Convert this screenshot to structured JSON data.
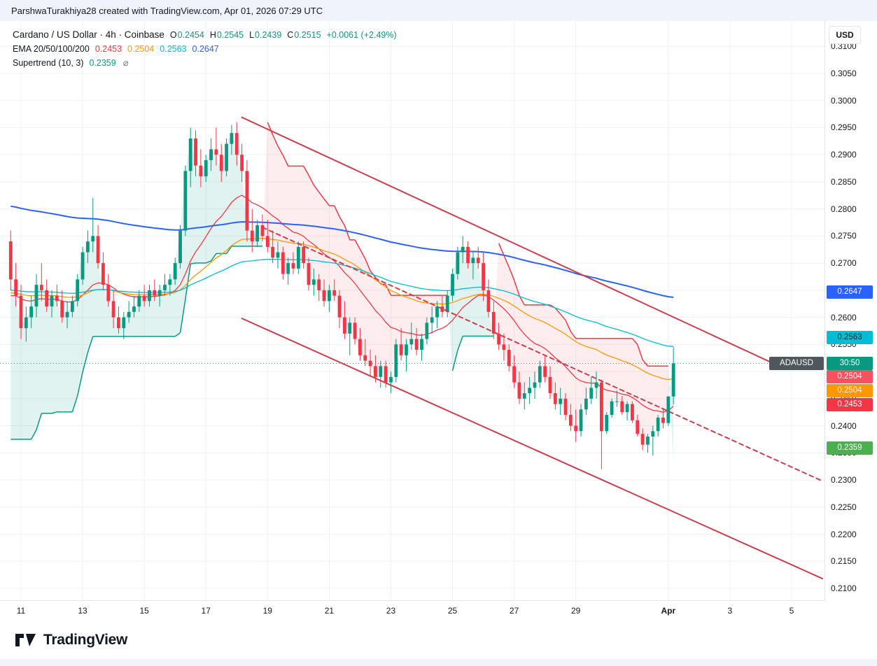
{
  "attribution": "ParshwaTurakhiya28 created with TradingView.com, Apr 01, 2026 07:29 UTC",
  "currency_button": "USD",
  "legend": {
    "symbol_title": "Cardano / US Dollar · 4h · Coinbase",
    "ohlc": {
      "o_label": "O",
      "o": "0.2454",
      "h_label": "H",
      "h": "0.2545",
      "l_label": "L",
      "l": "0.2439",
      "c_label": "C",
      "c": "0.2515",
      "change": "+0.0061 (+2.49%)",
      "color": "#089981"
    },
    "ema": {
      "title": "EMA 20/50/100/200",
      "values": [
        {
          "text": "0.2453",
          "color": "#f23645"
        },
        {
          "text": "0.2504",
          "color": "#ff9800"
        },
        {
          "text": "0.2563",
          "color": "#00bcd4"
        },
        {
          "text": "0.2647",
          "color": "#2962ff"
        }
      ]
    },
    "supertrend": {
      "title": "Supertrend (10, 3)",
      "value": "0.2359",
      "value_color": "#089981",
      "icon": "⌀"
    }
  },
  "symbol_badge": {
    "label": "ADAUSD",
    "bg": "#4d575c",
    "price": 0.2515
  },
  "price_axis": {
    "ticks": [
      "0.3100",
      "0.3050",
      "0.3000",
      "0.2950",
      "0.2900",
      "0.2850",
      "0.2800",
      "0.2750",
      "0.2700",
      "0.2650",
      "0.2600",
      "0.2550",
      "0.2500",
      "0.2450",
      "0.2400",
      "0.2350",
      "0.2300",
      "0.2250",
      "0.2200",
      "0.2150",
      "0.2100"
    ],
    "badges": [
      {
        "label": "0.2647",
        "bg": "#2962ff",
        "fg": "#ffffff",
        "price": 0.2647,
        "name": "ema200-price-badge"
      },
      {
        "label": "0.2563",
        "bg": "#00bcd4",
        "fg": "#102026",
        "price": 0.2563,
        "name": "ema100-price-badge"
      },
      {
        "label": "30:50",
        "bg": "#089981",
        "fg": "#ffffff",
        "price": 0.2515,
        "name": "countdown-badge"
      },
      {
        "label": "0.2504",
        "bg": "#f7525f",
        "fg": "#ffffff",
        "price": 0.249,
        "name": "supertrend-band-price-badge"
      },
      {
        "label": "0.2504",
        "bg": "#ff9800",
        "fg": "#ffffff",
        "price": 0.2464,
        "name": "ema50-price-badge"
      },
      {
        "label": "0.2453",
        "bg": "#f23645",
        "fg": "#ffffff",
        "price": 0.2439,
        "name": "ema20-price-badge"
      },
      {
        "label": "0.2359",
        "bg": "#4caf50",
        "fg": "#ffffff",
        "price": 0.2359,
        "name": "supertrend-price-badge"
      }
    ]
  },
  "time_axis": {
    "ticks": [
      {
        "i": 2,
        "label": "11"
      },
      {
        "i": 14,
        "label": "13"
      },
      {
        "i": 26,
        "label": "15"
      },
      {
        "i": 38,
        "label": "17"
      },
      {
        "i": 50,
        "label": "19"
      },
      {
        "i": 62,
        "label": "21"
      },
      {
        "i": 74,
        "label": "23"
      },
      {
        "i": 86,
        "label": "25"
      },
      {
        "i": 98,
        "label": "27"
      },
      {
        "i": 110,
        "label": "29"
      },
      {
        "i": 128,
        "label": "Apr",
        "bold": true
      },
      {
        "i": 140,
        "label": "3"
      },
      {
        "i": 152,
        "label": "5"
      }
    ]
  },
  "footer": {
    "brand": "TradingView"
  },
  "chart_data": {
    "type": "candlestick",
    "title": "Cardano / US Dollar",
    "symbol": "ADAUSD",
    "interval": "4h",
    "exchange": "Coinbase",
    "price_range": {
      "min": 0.21,
      "max": 0.31
    },
    "last_price": 0.2515,
    "last_price_line_color": "#089981",
    "up_color": "#089981",
    "down_color": "#f23645",
    "grid_color": "#eef0f3",
    "trendline_color": "#cc3e4c",
    "candles": [
      [
        0.274,
        0.276,
        0.265,
        0.267
      ],
      [
        0.267,
        0.27,
        0.262,
        0.264
      ],
      [
        0.264,
        0.266,
        0.256,
        0.258
      ],
      [
        0.258,
        0.262,
        0.2555,
        0.26
      ],
      [
        0.26,
        0.264,
        0.258,
        0.262
      ],
      [
        0.262,
        0.268,
        0.26,
        0.266
      ],
      [
        0.266,
        0.27,
        0.263,
        0.265
      ],
      [
        0.265,
        0.267,
        0.261,
        0.262
      ],
      [
        0.262,
        0.265,
        0.26,
        0.264
      ],
      [
        0.264,
        0.266,
        0.262,
        0.263
      ],
      [
        0.263,
        0.265,
        0.259,
        0.26
      ],
      [
        0.26,
        0.263,
        0.258,
        0.261
      ],
      [
        0.261,
        0.264,
        0.26,
        0.263
      ],
      [
        0.263,
        0.268,
        0.262,
        0.267
      ],
      [
        0.267,
        0.273,
        0.266,
        0.272
      ],
      [
        0.272,
        0.276,
        0.27,
        0.274
      ],
      [
        0.274,
        0.282,
        0.272,
        0.275
      ],
      [
        0.275,
        0.277,
        0.269,
        0.27
      ],
      [
        0.27,
        0.272,
        0.265,
        0.266
      ],
      [
        0.266,
        0.268,
        0.262,
        0.263
      ],
      [
        0.263,
        0.265,
        0.258,
        0.26
      ],
      [
        0.26,
        0.262,
        0.257,
        0.258
      ],
      [
        0.258,
        0.261,
        0.256,
        0.26
      ],
      [
        0.26,
        0.263,
        0.259,
        0.261
      ],
      [
        0.261,
        0.264,
        0.26,
        0.262
      ],
      [
        0.262,
        0.265,
        0.261,
        0.264
      ],
      [
        0.264,
        0.266,
        0.262,
        0.263
      ],
      [
        0.263,
        0.266,
        0.262,
        0.265
      ],
      [
        0.265,
        0.267,
        0.263,
        0.264
      ],
      [
        0.264,
        0.266,
        0.262,
        0.265
      ],
      [
        0.265,
        0.268,
        0.264,
        0.266
      ],
      [
        0.266,
        0.268,
        0.264,
        0.267
      ],
      [
        0.267,
        0.271,
        0.266,
        0.27
      ],
      [
        0.27,
        0.277,
        0.269,
        0.276
      ],
      [
        0.276,
        0.288,
        0.275,
        0.287
      ],
      [
        0.287,
        0.295,
        0.284,
        0.293
      ],
      [
        0.293,
        0.2945,
        0.286,
        0.288
      ],
      [
        0.288,
        0.291,
        0.284,
        0.286
      ],
      [
        0.286,
        0.29,
        0.285,
        0.289
      ],
      [
        0.289,
        0.293,
        0.287,
        0.291
      ],
      [
        0.291,
        0.295,
        0.288,
        0.29
      ],
      [
        0.29,
        0.292,
        0.285,
        0.287
      ],
      [
        0.287,
        0.293,
        0.286,
        0.292
      ],
      [
        0.292,
        0.2955,
        0.29,
        0.294
      ],
      [
        0.294,
        0.296,
        0.288,
        0.29
      ],
      [
        0.29,
        0.292,
        0.285,
        0.287
      ],
      [
        0.287,
        0.289,
        0.274,
        0.276
      ],
      [
        0.276,
        0.28,
        0.272,
        0.274
      ],
      [
        0.274,
        0.278,
        0.273,
        0.277
      ],
      [
        0.277,
        0.279,
        0.274,
        0.275
      ],
      [
        0.275,
        0.278,
        0.272,
        0.273
      ],
      [
        0.273,
        0.276,
        0.27,
        0.271
      ],
      [
        0.271,
        0.274,
        0.269,
        0.272
      ],
      [
        0.272,
        0.273,
        0.267,
        0.268
      ],
      [
        0.268,
        0.271,
        0.266,
        0.27
      ],
      [
        0.27,
        0.272,
        0.268,
        0.269
      ],
      [
        0.269,
        0.274,
        0.268,
        0.273
      ],
      [
        0.273,
        0.274,
        0.269,
        0.27
      ],
      [
        0.27,
        0.271,
        0.265,
        0.266
      ],
      [
        0.266,
        0.269,
        0.264,
        0.267
      ],
      [
        0.267,
        0.268,
        0.263,
        0.265
      ],
      [
        0.265,
        0.267,
        0.262,
        0.263
      ],
      [
        0.263,
        0.266,
        0.261,
        0.265
      ],
      [
        0.265,
        0.267,
        0.263,
        0.264
      ],
      [
        0.264,
        0.265,
        0.258,
        0.26
      ],
      [
        0.26,
        0.263,
        0.256,
        0.257
      ],
      [
        0.257,
        0.26,
        0.253,
        0.259
      ],
      [
        0.259,
        0.26,
        0.255,
        0.256
      ],
      [
        0.256,
        0.258,
        0.252,
        0.253
      ],
      [
        0.253,
        0.256,
        0.251,
        0.252
      ],
      [
        0.252,
        0.254,
        0.249,
        0.251
      ],
      [
        0.251,
        0.253,
        0.248,
        0.249
      ],
      [
        0.249,
        0.252,
        0.247,
        0.251
      ],
      [
        0.251,
        0.252,
        0.247,
        0.248
      ],
      [
        0.248,
        0.25,
        0.246,
        0.249
      ],
      [
        0.249,
        0.256,
        0.248,
        0.255
      ],
      [
        0.255,
        0.258,
        0.252,
        0.253
      ],
      [
        0.253,
        0.256,
        0.25,
        0.255
      ],
      [
        0.255,
        0.259,
        0.254,
        0.256
      ],
      [
        0.256,
        0.258,
        0.253,
        0.254
      ],
      [
        0.254,
        0.257,
        0.252,
        0.256
      ],
      [
        0.256,
        0.26,
        0.255,
        0.259
      ],
      [
        0.259,
        0.262,
        0.257,
        0.26
      ],
      [
        0.26,
        0.263,
        0.258,
        0.262
      ],
      [
        0.262,
        0.264,
        0.26,
        0.261
      ],
      [
        0.261,
        0.265,
        0.26,
        0.264
      ],
      [
        0.264,
        0.269,
        0.263,
        0.268
      ],
      [
        0.268,
        0.273,
        0.267,
        0.272
      ],
      [
        0.272,
        0.275,
        0.27,
        0.273
      ],
      [
        0.273,
        0.274,
        0.269,
        0.27
      ],
      [
        0.27,
        0.272,
        0.267,
        0.271
      ],
      [
        0.271,
        0.273,
        0.269,
        0.27
      ],
      [
        0.27,
        0.272,
        0.263,
        0.265
      ],
      [
        0.265,
        0.267,
        0.26,
        0.261
      ],
      [
        0.261,
        0.263,
        0.256,
        0.257
      ],
      [
        0.257,
        0.259,
        0.254,
        0.255
      ],
      [
        0.255,
        0.257,
        0.252,
        0.254
      ],
      [
        0.254,
        0.255,
        0.25,
        0.251
      ],
      [
        0.251,
        0.253,
        0.247,
        0.248
      ],
      [
        0.248,
        0.25,
        0.244,
        0.245
      ],
      [
        0.245,
        0.248,
        0.243,
        0.246
      ],
      [
        0.246,
        0.249,
        0.244,
        0.247
      ],
      [
        0.247,
        0.25,
        0.245,
        0.248
      ],
      [
        0.248,
        0.252,
        0.247,
        0.251
      ],
      [
        0.251,
        0.253,
        0.248,
        0.249
      ],
      [
        0.249,
        0.251,
        0.245,
        0.246
      ],
      [
        0.246,
        0.248,
        0.243,
        0.244
      ],
      [
        0.244,
        0.247,
        0.242,
        0.245
      ],
      [
        0.245,
        0.246,
        0.241,
        0.242
      ],
      [
        0.242,
        0.244,
        0.239,
        0.24
      ],
      [
        0.24,
        0.243,
        0.237,
        0.239
      ],
      [
        0.239,
        0.244,
        0.238,
        0.243
      ],
      [
        0.243,
        0.247,
        0.242,
        0.245
      ],
      [
        0.245,
        0.249,
        0.244,
        0.247
      ],
      [
        0.247,
        0.25,
        0.245,
        0.248
      ],
      [
        0.248,
        0.2485,
        0.232,
        0.239
      ],
      [
        0.239,
        0.2425,
        0.2385,
        0.242
      ],
      [
        0.242,
        0.245,
        0.2415,
        0.2445
      ],
      [
        0.2445,
        0.2465,
        0.2435,
        0.2445
      ],
      [
        0.2445,
        0.2455,
        0.242,
        0.2425
      ],
      [
        0.2425,
        0.2445,
        0.241,
        0.244
      ],
      [
        0.244,
        0.2445,
        0.2405,
        0.241
      ],
      [
        0.241,
        0.242,
        0.238,
        0.2385
      ],
      [
        0.2385,
        0.2395,
        0.2355,
        0.2365
      ],
      [
        0.2365,
        0.2385,
        0.235,
        0.238
      ],
      [
        0.238,
        0.24,
        0.2345,
        0.239
      ],
      [
        0.239,
        0.242,
        0.238,
        0.2415
      ],
      [
        0.2415,
        0.243,
        0.2395,
        0.2405
      ],
      [
        0.2405,
        0.2455,
        0.24,
        0.2454
      ],
      [
        0.2454,
        0.2545,
        0.2439,
        0.2515
      ]
    ],
    "indicators": {
      "emas": [
        {
          "period": 20,
          "seed": 0.264,
          "color": "#f23645",
          "width": 1.3,
          "last_value": 0.2453
        },
        {
          "period": 50,
          "seed": 0.2645,
          "color": "#ff9800",
          "width": 1.3,
          "last_value": 0.2504
        },
        {
          "period": 100,
          "seed": 0.265,
          "color": "#00bcd4",
          "width": 1.3,
          "last_value": 0.2563
        },
        {
          "period": 200,
          "seed": 0.2805,
          "color": "#2962ff",
          "width": 2,
          "last_value": 0.2647
        }
      ],
      "supertrend": {
        "period": 10,
        "multiplier": 3,
        "last_value": 0.2359,
        "up_line": "#089981",
        "down_line": "#f23645",
        "fill_up": "rgba(8,153,129,0.12)",
        "fill_down": "rgba(242,54,69,0.09)"
      }
    },
    "trendlines": [
      {
        "name": "channel-upper-line",
        "i1": 45,
        "p1": 0.2969,
        "i2": 148,
        "p2": 0.2517,
        "dash": false
      },
      {
        "name": "channel-lower-line",
        "i1": 45,
        "p1": 0.2598,
        "i2": 158,
        "p2": 0.2118,
        "dash": false
      },
      {
        "name": "channel-dashed-line",
        "i1": 49,
        "p1": 0.2766,
        "i2": 158,
        "p2": 0.2298,
        "dash": true
      }
    ]
  }
}
